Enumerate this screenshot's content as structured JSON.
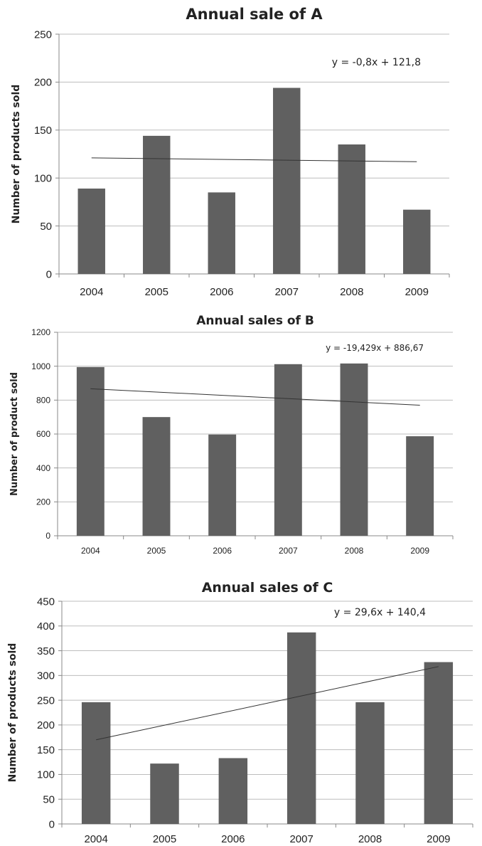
{
  "chart_data": [
    {
      "type": "bar",
      "title": "Annual sale of A",
      "xlabel": "",
      "ylabel": "Number of products sold",
      "categories": [
        "2004",
        "2005",
        "2006",
        "2007",
        "2008",
        "2009"
      ],
      "values": [
        89,
        144,
        85,
        194,
        135,
        67
      ],
      "ylim": [
        0,
        250
      ],
      "yticks": [
        "0",
        "50",
        "100",
        "150",
        "200",
        "250"
      ],
      "trendline": {
        "type": "linear",
        "start": 121,
        "end": 117,
        "equation": "y = -0,8x + 121,8"
      },
      "grid": true,
      "colors": {
        "bar": "#606060",
        "grid": "#bdbdbd",
        "trend": "#333333"
      }
    },
    {
      "type": "bar",
      "title": "Annual sales of B",
      "xlabel": "",
      "ylabel": "Number of product sold",
      "categories": [
        "2004",
        "2005",
        "2006",
        "2007",
        "2008",
        "2009"
      ],
      "values": [
        995,
        700,
        597,
        1012,
        1016,
        587
      ],
      "ylim": [
        0,
        1200
      ],
      "yticks": [
        "0",
        "200",
        "400",
        "600",
        "800",
        "1000",
        "1200"
      ],
      "trendline": {
        "type": "linear",
        "start": 867,
        "end": 770,
        "equation": "y = -19,429x + 886,67"
      },
      "grid": true,
      "colors": {
        "bar": "#606060",
        "grid": "#bdbdbd",
        "trend": "#333333"
      }
    },
    {
      "type": "bar",
      "title": "Annual sales of C",
      "xlabel": "",
      "ylabel": "Number of products sold",
      "categories": [
        "2004",
        "2005",
        "2006",
        "2007",
        "2008",
        "2009"
      ],
      "values": [
        246,
        122,
        133,
        387,
        246,
        327
      ],
      "ylim": [
        0,
        450
      ],
      "yticks": [
        "0",
        "50",
        "100",
        "150",
        "200",
        "250",
        "300",
        "350",
        "400",
        "450"
      ],
      "trendline": {
        "type": "linear",
        "start": 170,
        "end": 318,
        "equation": "y = 29,6x + 140,4"
      },
      "grid": true,
      "colors": {
        "bar": "#606060",
        "grid": "#bdbdbd",
        "trend": "#333333"
      }
    }
  ]
}
